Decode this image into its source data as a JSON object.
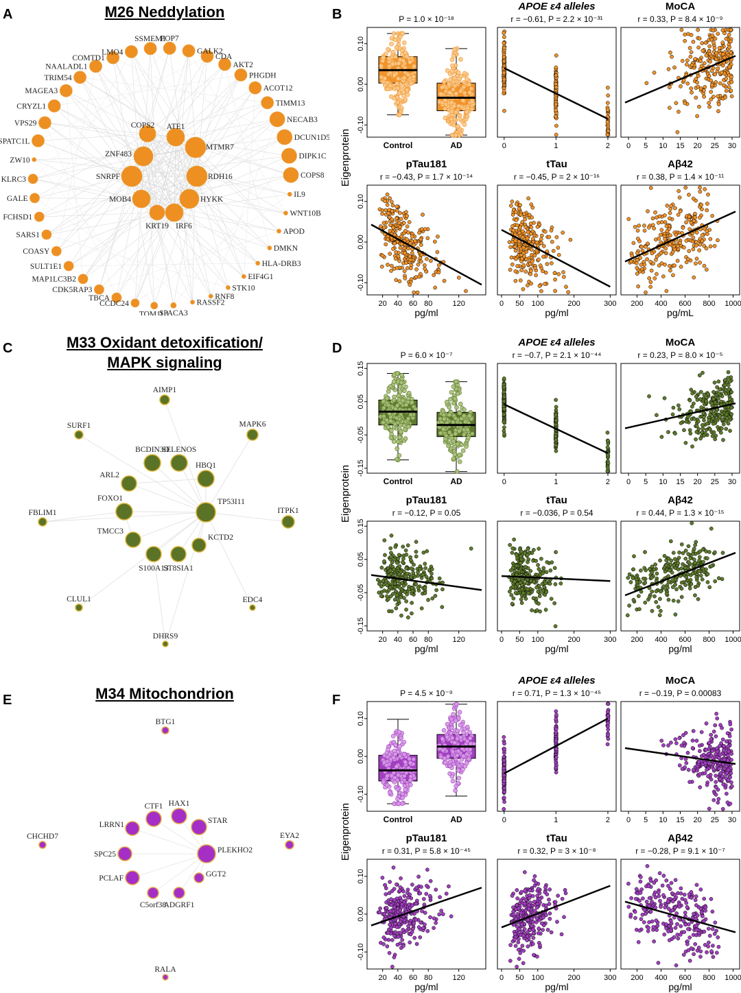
{
  "panels": {
    "A": {
      "letter": "A",
      "title": "M26 Neddylation",
      "color": "#ee8f22",
      "edge_color": "#dcdcdc",
      "hubs": [
        "ATE1",
        "COPS2",
        "ZNF483",
        "MTMR7",
        "SNRPF",
        "RDH16",
        "MOB4",
        "HYKK",
        "KRT19",
        "IRF6"
      ],
      "ring": [
        "GALK2",
        "CDA",
        "AKT2",
        "PHGDH",
        "ACOT12",
        "TIMM13",
        "NECAB3",
        "DCUN1D5",
        "DIPK1C",
        "COPS8",
        "IL9",
        "WNT10B",
        "APOD",
        "DMKN",
        "HLA-DRB3",
        "EIF4G1",
        "STK10",
        "RNF8",
        "RASSF2",
        "SPACA3",
        "TOM1L1",
        "CCDC24",
        "TBCA",
        "CDK5RAP3",
        "MAP1LC3B2",
        "SULT1E1",
        "COASY",
        "SARS1",
        "FCHSD1",
        "GALE",
        "KLRC3",
        "ZW10",
        "SPATC1L",
        "VPS29",
        "CRYZL1",
        "MAGEA3",
        "TRIM54",
        "NAALADL1",
        "COMTD1",
        "LMO4",
        "SSMEM1",
        "POP7"
      ]
    },
    "C": {
      "letter": "C",
      "title_line1": "M33 Oxidant detoxification/",
      "title_line2": "MAPK signaling",
      "color": "#5a7327",
      "border": "#d9b234",
      "edge_color": "#e3e3e3",
      "nodes": [
        "AIMP1",
        "SURF1",
        "MAPK6",
        "BCDIN3D",
        "SELENOS",
        "ARL2",
        "HBQ1",
        "FOXO1",
        "TP53I11",
        "FBLIM1",
        "ITPK1",
        "TMCC3",
        "KCTD2",
        "S100A13",
        "ST8SIA1",
        "CLUL1",
        "EDC4",
        "DHRS9"
      ]
    },
    "E": {
      "letter": "E",
      "title": "M34 Mitochondrion",
      "color": "#a52fc6",
      "border": "#e0a84a",
      "edge_color": "#e8e8e8",
      "nodes": [
        "BTG1",
        "CTF1",
        "HAX1",
        "LRRN1",
        "STAR",
        "CHCHD7",
        "SPC25",
        "PLEKHO2",
        "EYA2",
        "PCLAF",
        "GGT2",
        "C5orf38",
        "ADGRF1",
        "RALA"
      ]
    },
    "B": {
      "letter": "B",
      "color": "#f0932a",
      "light": "#f9c98a",
      "ylabel": "Eigenprotein",
      "box_stat": "P = 1.0 × 10⁻¹⁸",
      "box_categories": [
        "Control",
        "AD"
      ],
      "titles": [
        "APOE ε4 alleles",
        "MoCA",
        "pTau181",
        "tTau",
        "Aβ42"
      ],
      "stats": [
        "r = −0.61, P = 2.2 × 10⁻³¹",
        "r = 0.33, P = 8.4 × 10⁻⁹",
        "r = −0.43, P = 1.7 × 10⁻¹⁴",
        "r = −0.45, P = 2 × 10⁻¹⁶",
        "r = 0.38, P = 1.4 × 10⁻¹¹"
      ],
      "xlabels": [
        "pg/ml",
        "pg/ml",
        "pg/mL"
      ]
    },
    "D": {
      "letter": "D",
      "color": "#5e7a2c",
      "light": "#a8c07a",
      "ylabel": "Eigenprotein",
      "box_stat": "P = 6.0 × 10⁻⁷",
      "box_categories": [
        "Control",
        "AD"
      ],
      "titles": [
        "APOE ε4 alleles",
        "MoCA",
        "pTau181",
        "tTau",
        "Aβ42"
      ],
      "stats": [
        "r = −0.7, P = 2.1 × 10⁻⁴⁴",
        "r = 0.23, P = 8.0 × 10⁻⁵",
        "r = −0.12, P = 0.05",
        "r = −0.036, P = 0.54",
        "r = 0.44, P = 1.3 × 10⁻¹⁵"
      ],
      "xlabels": [
        "pg/ml",
        "pg/ml",
        "pg/ml"
      ]
    },
    "F": {
      "letter": "F",
      "color": "#a23fc0",
      "light": "#d69ae6",
      "ylabel": "Eigenprotein",
      "box_stat": "P = 4.5 × 10⁻⁹",
      "box_categories": [
        "Control",
        "AD"
      ],
      "titles": [
        "APOE ε4 alleles",
        "MoCA",
        "pTau181",
        "tTau",
        "Aβ42"
      ],
      "stats": [
        "r = 0.71, P = 1.3 × 10⁻⁴⁵",
        "r = −0.19, P = 0.00083",
        "r = 0.31, P = 5.8 × 10⁻⁴⁵",
        "r = 0.32, P = 3 × 10⁻⁸",
        "r = −0.28, P = 9.1 × 10⁻⁷"
      ],
      "xlabels": [
        "pg/ml",
        "pg/ml",
        "pg/ml"
      ]
    }
  },
  "chart_data": [
    {
      "panel": "B",
      "type": "scatter",
      "ylabel": "Eigenprotein",
      "ylim": [
        -0.13,
        0.14
      ],
      "yticks": [
        -0.1,
        0,
        0.1
      ],
      "ytick_labels": [
        "-0.10",
        "0.00",
        "0.10"
      ],
      "boxplot": {
        "categories": [
          "Control",
          "AD"
        ],
        "stat": "P = 1.0 × 10⁻¹⁸",
        "Control": {
          "min": -0.075,
          "q1": 0.003,
          "median": 0.035,
          "q3": 0.068,
          "max": 0.125
        },
        "AD": {
          "min": -0.125,
          "q1": -0.065,
          "median": -0.033,
          "q3": 0.003,
          "max": 0.088
        }
      },
      "scatter": [
        {
          "title": "APOE ε4 alleles",
          "stat": "r = −0.61, P = 2.2 × 10⁻³¹",
          "xlim": [
            -0.05,
            2.08
          ],
          "xticks": [
            0,
            1,
            2
          ],
          "xlabel": "",
          "discrete": true,
          "line": [
            [
              0,
              0.04
            ],
            [
              2,
              -0.085
            ]
          ]
        },
        {
          "title": "MoCA",
          "stat": "r = 0.33, P = 8.4 × 10⁻⁹",
          "xlim": [
            -1,
            31
          ],
          "xticks": [
            0,
            5,
            10,
            15,
            20,
            25,
            30
          ],
          "xlabel": "",
          "line": [
            [
              -1,
              -0.045
            ],
            [
              31,
              0.07
            ]
          ]
        },
        {
          "title": "pTau181",
          "stat": "r = −0.43, P = 1.7 × 10⁻¹⁴",
          "xlim": [
            5,
            150
          ],
          "xticks": [
            20,
            40,
            60,
            80,
            120
          ],
          "xlabel": "pg/ml",
          "line": [
            [
              5,
              0.043
            ],
            [
              150,
              -0.105
            ]
          ]
        },
        {
          "title": "tTau",
          "stat": "r = −0.45, P = 2 × 10⁻¹⁶",
          "xlim": [
            0,
            305
          ],
          "xticks": [
            0,
            50,
            100,
            200,
            300
          ],
          "xlabel": "pg/ml",
          "line": [
            [
              0,
              0.03
            ],
            [
              300,
              -0.11
            ]
          ]
        },
        {
          "title": "Aβ42",
          "stat": "r = 0.38, P = 1.4 × 10⁻¹¹",
          "xlim": [
            100,
            1020
          ],
          "xticks": [
            200,
            400,
            600,
            800,
            1000
          ],
          "xlabel": "pg/mL",
          "line": [
            [
              100,
              -0.048
            ],
            [
              1020,
              0.075
            ]
          ]
        }
      ]
    },
    {
      "panel": "D",
      "type": "scatter",
      "ylabel": "Eigenprotein",
      "ylim": [
        -0.165,
        0.165
      ],
      "yticks": [
        -0.15,
        -0.05,
        0.05,
        0.15
      ],
      "ytick_labels": [
        "-0.15",
        "-0.05",
        "0.05",
        "0.15"
      ],
      "boxplot": {
        "categories": [
          "Control",
          "AD"
        ],
        "stat": "P = 6.0 × 10⁻⁷",
        "Control": {
          "min": -0.125,
          "q1": -0.02,
          "median": 0.02,
          "q3": 0.055,
          "max": 0.135
        },
        "AD": {
          "min": -0.16,
          "q1": -0.055,
          "median": -0.02,
          "q3": 0.018,
          "max": 0.11
        }
      },
      "scatter": [
        {
          "title": "APOE ε4 alleles",
          "stat": "r = −0.7, P = 2.1 × 10⁻⁴⁴",
          "xlim": [
            -0.05,
            2.08
          ],
          "xticks": [
            0,
            1,
            2
          ],
          "xlabel": "",
          "discrete": true,
          "line": [
            [
              0,
              0.042
            ],
            [
              2,
              -0.105
            ]
          ]
        },
        {
          "title": "MoCA",
          "stat": "r = 0.23, P = 8.0 × 10⁻⁵",
          "xlim": [
            -1,
            31
          ],
          "xticks": [
            0,
            5,
            10,
            15,
            20,
            25,
            30
          ],
          "xlabel": "",
          "line": [
            [
              -1,
              -0.03
            ],
            [
              31,
              0.045
            ]
          ]
        },
        {
          "title": "pTau181",
          "stat": "r = −0.12, P = 0.05",
          "xlim": [
            5,
            150
          ],
          "xticks": [
            20,
            40,
            60,
            80,
            120
          ],
          "xlabel": "pg/ml",
          "line": [
            [
              5,
              0.003
            ],
            [
              150,
              -0.042
            ]
          ]
        },
        {
          "title": "tTau",
          "stat": "r = −0.036, P = 0.54",
          "xlim": [
            0,
            305
          ],
          "xticks": [
            0,
            50,
            100,
            200,
            300
          ],
          "xlabel": "pg/ml",
          "line": [
            [
              0,
              0.0
            ],
            [
              300,
              -0.015
            ]
          ]
        },
        {
          "title": "Aβ42",
          "stat": "r = 0.44, P = 1.3 × 10⁻¹⁵",
          "xlim": [
            100,
            1020
          ],
          "xticks": [
            200,
            400,
            600,
            800,
            1000
          ],
          "xlabel": "pg/ml",
          "line": [
            [
              100,
              -0.058
            ],
            [
              1020,
              0.07
            ]
          ]
        }
      ]
    },
    {
      "panel": "F",
      "type": "scatter",
      "ylabel": "Eigenprotein",
      "ylim": [
        -0.145,
        0.145
      ],
      "yticks": [
        -0.1,
        0,
        0.1
      ],
      "ytick_labels": [
        "-0.10",
        "0.00",
        "0.10"
      ],
      "boxplot": {
        "categories": [
          "Control",
          "AD"
        ],
        "stat": "P = 4.5 × 10⁻⁹",
        "Control": {
          "min": -0.125,
          "q1": -0.065,
          "median": -0.037,
          "q3": 0.003,
          "max": 0.098
        },
        "AD": {
          "min": -0.105,
          "q1": -0.005,
          "median": 0.026,
          "q3": 0.058,
          "max": 0.138
        }
      },
      "scatter": [
        {
          "title": "APOE ε4 alleles",
          "stat": "r = 0.71, P = 1.3 × 10⁻⁴⁵",
          "xlim": [
            -0.05,
            2.08
          ],
          "xticks": [
            0,
            1,
            2
          ],
          "xlabel": "",
          "discrete": true,
          "line": [
            [
              0,
              -0.045
            ],
            [
              2,
              0.1
            ]
          ]
        },
        {
          "title": "MoCA",
          "stat": "r = −0.19, P = 0.00083",
          "xlim": [
            -1,
            31
          ],
          "xticks": [
            0,
            5,
            10,
            15,
            20,
            25,
            30
          ],
          "xlabel": "",
          "line": [
            [
              -1,
              0.022
            ],
            [
              31,
              -0.02
            ]
          ]
        },
        {
          "title": "pTau181",
          "stat": "r = 0.31, P = 5.8 × 10⁻⁴⁵",
          "xlim": [
            5,
            150
          ],
          "xticks": [
            20,
            40,
            60,
            80,
            120
          ],
          "xlabel": "pg/ml",
          "line": [
            [
              5,
              -0.03
            ],
            [
              150,
              0.07
            ]
          ]
        },
        {
          "title": "tTau",
          "stat": "r = 0.32, P = 3 × 10⁻⁸",
          "xlim": [
            0,
            305
          ],
          "xticks": [
            0,
            50,
            100,
            200,
            300
          ],
          "xlabel": "pg/ml",
          "line": [
            [
              0,
              -0.035
            ],
            [
              300,
              0.075
            ]
          ]
        },
        {
          "title": "Aβ42",
          "stat": "r = −0.28, P = 9.1 × 10⁻⁷",
          "xlim": [
            100,
            1020
          ],
          "xticks": [
            200,
            400,
            600,
            800,
            1000
          ],
          "xlabel": "pg/ml",
          "line": [
            [
              100,
              0.033
            ],
            [
              1020,
              -0.048
            ]
          ]
        }
      ]
    }
  ]
}
